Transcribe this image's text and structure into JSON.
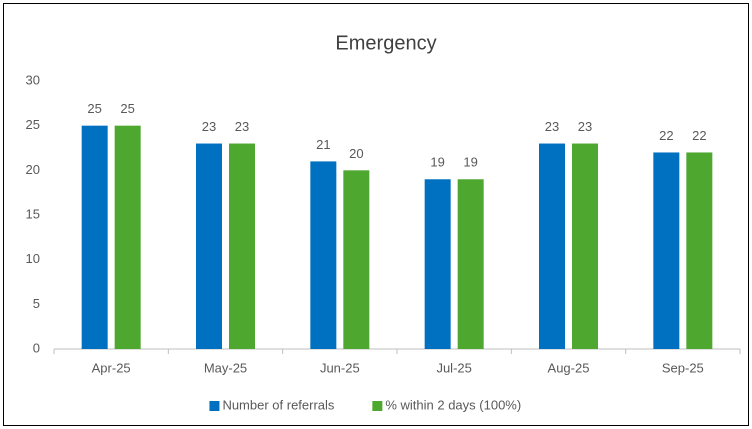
{
  "chart_data": {
    "type": "bar",
    "title": "Emergency",
    "categories": [
      "Apr-25",
      "May-25",
      "Jun-25",
      "Jul-25",
      "Aug-25",
      "Sep-25"
    ],
    "series": [
      {
        "name": "Number of referrals",
        "color": "#0070c0",
        "values": [
          25,
          23,
          21,
          19,
          23,
          22
        ]
      },
      {
        "name": "% within 2 days (100%)",
        "color": "#4ea72e",
        "values": [
          25,
          23,
          20,
          19,
          23,
          22
        ]
      }
    ],
    "ylim": [
      0,
      30
    ],
    "yticks": [
      0,
      5,
      10,
      15,
      20,
      25,
      30
    ],
    "grid": false,
    "legend": "bottom"
  }
}
